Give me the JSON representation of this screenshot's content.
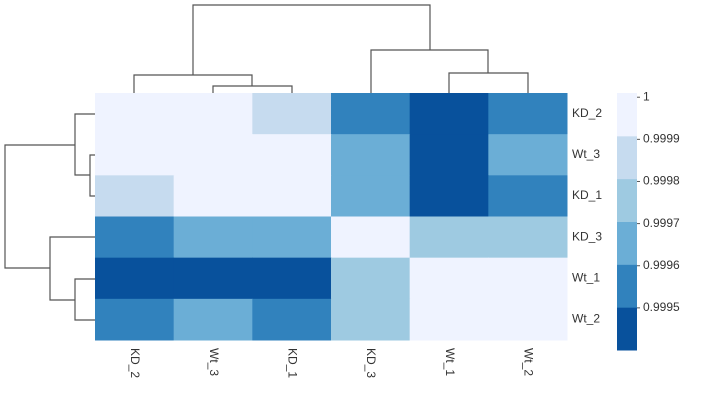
{
  "chart_data": {
    "type": "heatmap",
    "rows": [
      "KD_2",
      "Wt_3",
      "KD_1",
      "KD_3",
      "Wt_1",
      "Wt_2"
    ],
    "columns": [
      "KD_2",
      "Wt_3",
      "KD_1",
      "KD_3",
      "Wt_1",
      "Wt_2"
    ],
    "values": [
      [
        1,
        1,
        0.99985,
        0.99955,
        0.99945,
        0.99955
      ],
      [
        1,
        1,
        1,
        0.99965,
        0.99945,
        0.99965
      ],
      [
        0.99985,
        1,
        1,
        0.99965,
        0.99945,
        0.99955
      ],
      [
        0.99955,
        0.99965,
        0.99965,
        1,
        0.99975,
        0.99975
      ],
      [
        0.99945,
        0.99945,
        0.99945,
        0.99975,
        1,
        1
      ],
      [
        0.99955,
        0.99965,
        0.99955,
        0.99975,
        1,
        1
      ]
    ],
    "colors": [
      "#08519c",
      "#3182bd",
      "#6baed6",
      "#9ecae1",
      "#c6dbef",
      "#eff3ff"
    ],
    "clim": [
      0.9994,
      1.00001
    ],
    "cticks": [
      1,
      0.9999,
      0.9998,
      0.9997,
      0.9996,
      0.9995
    ]
  }
}
